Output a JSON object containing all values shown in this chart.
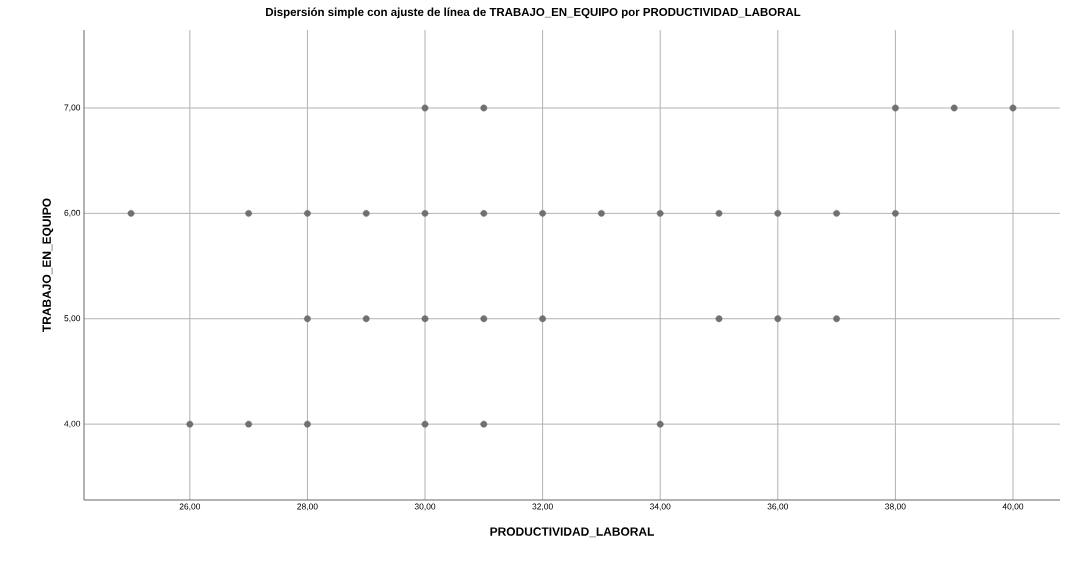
{
  "chart_data": {
    "type": "scatter",
    "title": "Dispersión simple con ajuste de línea de TRABAJO_EN_EQUIPO por PRODUCTIVIDAD_LABORAL",
    "xlabel": "PRODUCTIVIDAD_LABORAL",
    "ylabel": "TRABAJO_EN_EQUIPO",
    "x": [
      30,
      31,
      38,
      39,
      40,
      25,
      27,
      28,
      29,
      30,
      31,
      32,
      33,
      34,
      35,
      36,
      37,
      38,
      28,
      29,
      30,
      31,
      32,
      35,
      36,
      37,
      26,
      27,
      28,
      30,
      31,
      34
    ],
    "values": [
      7,
      7,
      7,
      7,
      7,
      6,
      6,
      6,
      6,
      6,
      6,
      6,
      6,
      6,
      6,
      6,
      6,
      6,
      5,
      5,
      5,
      5,
      5,
      5,
      5,
      5,
      4,
      4,
      4,
      4,
      4,
      4
    ],
    "color": "#707070",
    "marker": "circle",
    "grid": true,
    "xlim": [
      24.2,
      40.8
    ],
    "ylim": [
      3.28,
      7.74
    ],
    "xticks": [
      {
        "value": 26,
        "label": "26,00"
      },
      {
        "value": 28,
        "label": "28,00"
      },
      {
        "value": 30,
        "label": "30,00"
      },
      {
        "value": 32,
        "label": "32,00"
      },
      {
        "value": 34,
        "label": "34,00"
      },
      {
        "value": 36,
        "label": "36,00"
      },
      {
        "value": 38,
        "label": "38,00"
      },
      {
        "value": 40,
        "label": "40,00"
      }
    ],
    "yticks": [
      {
        "value": 4,
        "label": "4,00"
      },
      {
        "value": 5,
        "label": "5,00"
      },
      {
        "value": 6,
        "label": "6,00"
      },
      {
        "value": 7,
        "label": "7,00"
      }
    ]
  }
}
